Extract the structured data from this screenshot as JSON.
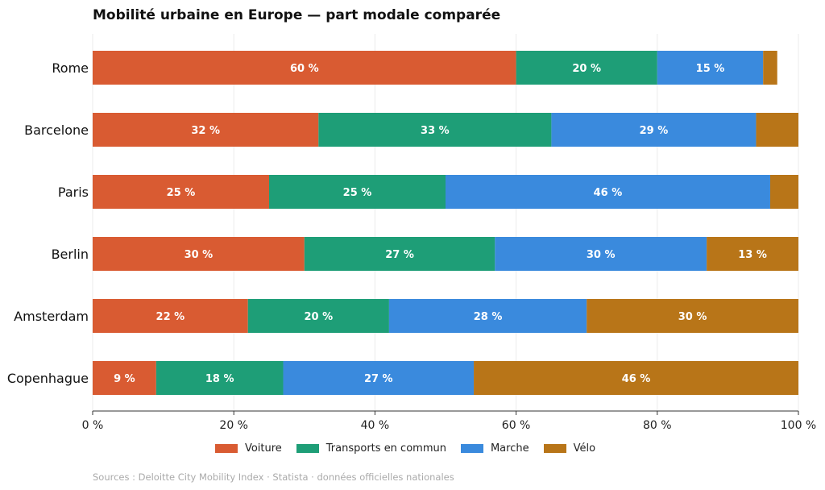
{
  "chart_data": {
    "type": "bar",
    "orientation": "horizontal",
    "stacked": true,
    "title": "Mobilité urbaine en Europe — part modale comparée",
    "categories": [
      "Rome",
      "Barcelone",
      "Paris",
      "Berlin",
      "Amsterdam",
      "Copenhague"
    ],
    "series": [
      {
        "name": "Voiture",
        "color": "#d95b32",
        "values": [
          60,
          32,
          25,
          30,
          22,
          9
        ]
      },
      {
        "name": "Transports en commun",
        "color": "#1e9e77",
        "values": [
          20,
          33,
          25,
          27,
          20,
          18
        ]
      },
      {
        "name": "Marche",
        "color": "#3a8add",
        "values": [
          15,
          29,
          46,
          30,
          28,
          27
        ]
      },
      {
        "name": "Vélo",
        "color": "#b87518",
        "values": [
          2,
          6,
          4,
          13,
          30,
          46
        ]
      }
    ],
    "xlim": [
      0,
      100
    ],
    "xticks": [
      "0 %",
      "20 %",
      "40 %",
      "60 %",
      "80 %",
      "100 %"
    ],
    "value_suffix": " %",
    "grid": "vertical",
    "legend": "bottom",
    "source": "Sources : Deloitte City Mobility Index · Statista · données officielles nationales"
  }
}
